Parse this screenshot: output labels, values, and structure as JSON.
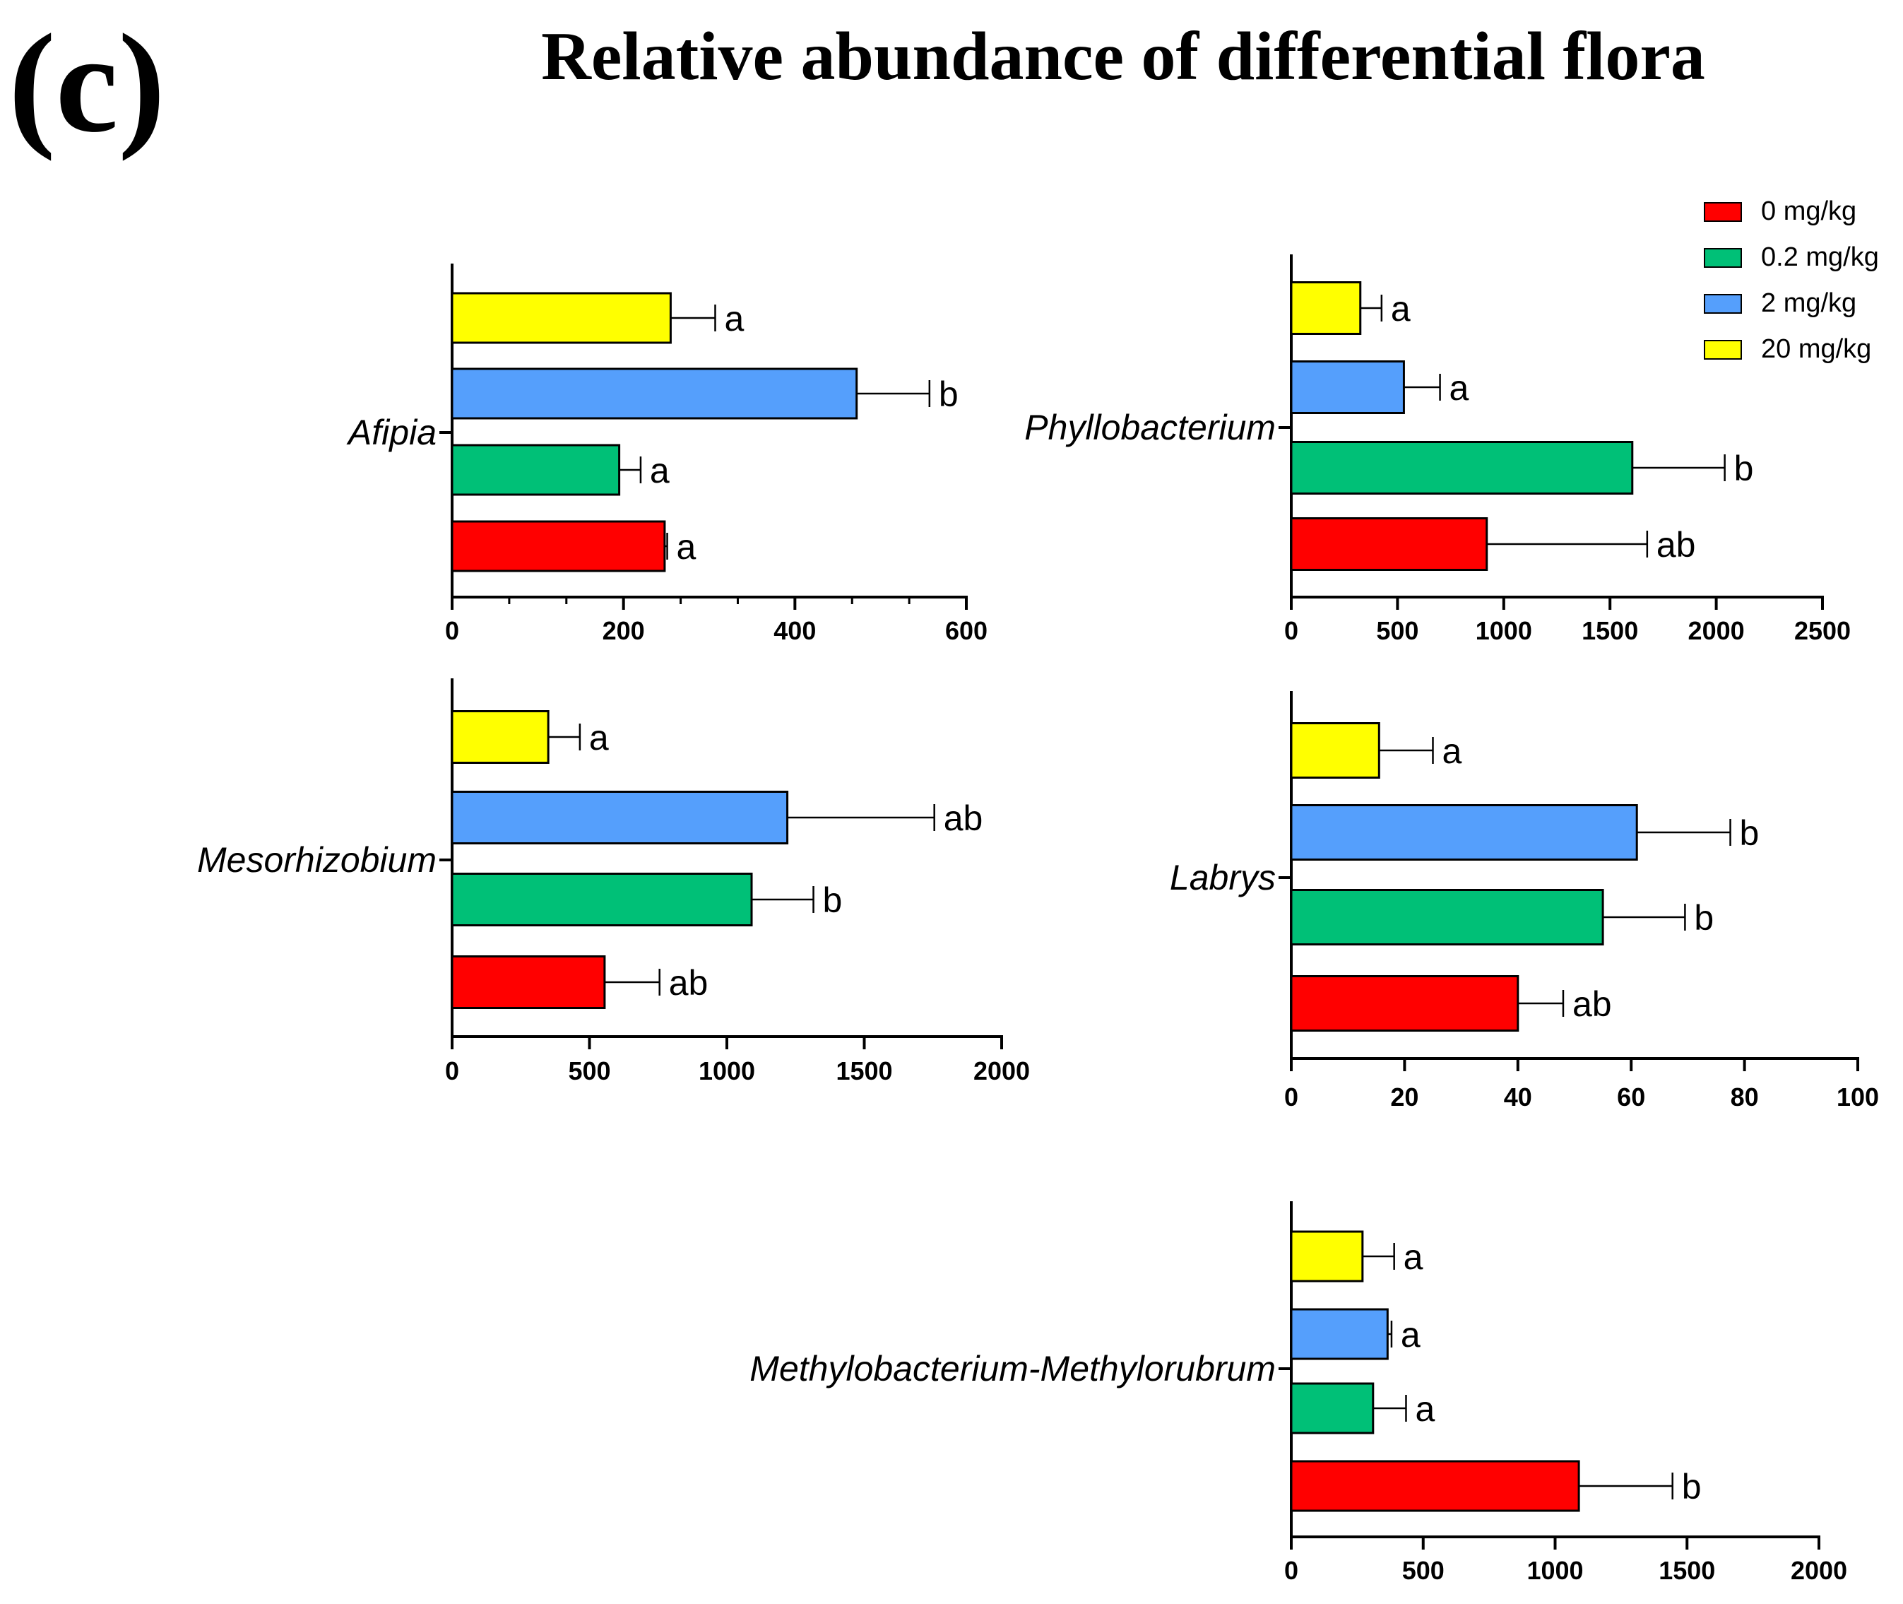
{
  "figure": {
    "panel_label": "(c)",
    "title": "Relative abundance of differential flora"
  },
  "legend": [
    {
      "name": "0 mg/kg",
      "color": "#ff0000"
    },
    {
      "name": "0.2 mg/kg",
      "color": "#00c077"
    },
    {
      "name": "2 mg/kg",
      "color": "#559ffc"
    },
    {
      "name": "20 mg/kg",
      "color": "#ffff00"
    }
  ],
  "chart_data": [
    {
      "type": "bar",
      "orientation": "horizontal",
      "category": "Afipia",
      "series_order": [
        "20 mg/kg",
        "2 mg/kg",
        "0.2 mg/kg",
        "0 mg/kg"
      ],
      "values": [
        255,
        472,
        195,
        248
      ],
      "errors": [
        52,
        85,
        25,
        3
      ],
      "significance": [
        "a",
        "b",
        "a",
        "a"
      ],
      "xlim": [
        0,
        600
      ],
      "ticks": [
        0,
        200,
        400,
        600
      ],
      "minor_step": 66.67
    },
    {
      "type": "bar",
      "orientation": "horizontal",
      "category": "Phyllobacterium",
      "series_order": [
        "20 mg/kg",
        "2 mg/kg",
        "0.2 mg/kg",
        "0 mg/kg"
      ],
      "values": [
        325,
        530,
        1605,
        920
      ],
      "errors": [
        100,
        170,
        435,
        755
      ],
      "significance": [
        "a",
        "a",
        "b",
        "ab"
      ],
      "xlim": [
        0,
        2500
      ],
      "ticks": [
        0,
        500,
        1000,
        1500,
        2000,
        2500
      ],
      "minor_step": 0
    },
    {
      "type": "bar",
      "orientation": "horizontal",
      "category": "Mesorhizobium",
      "series_order": [
        "20 mg/kg",
        "2 mg/kg",
        "0.2 mg/kg",
        "0 mg/kg"
      ],
      "values": [
        350,
        1220,
        1090,
        555
      ],
      "errors": [
        115,
        535,
        225,
        200
      ],
      "significance": [
        "a",
        "ab",
        "b",
        "ab"
      ],
      "xlim": [
        0,
        2000
      ],
      "ticks": [
        0,
        500,
        1000,
        1500,
        2000
      ],
      "minor_step": 0
    },
    {
      "type": "bar",
      "orientation": "horizontal",
      "category": "Labrys",
      "series_order": [
        "20 mg/kg",
        "2 mg/kg",
        "0.2 mg/kg",
        "0 mg/kg"
      ],
      "values": [
        15.5,
        61,
        55,
        40
      ],
      "errors": [
        9.5,
        16.5,
        14.5,
        8
      ],
      "significance": [
        "a",
        "b",
        "b",
        "ab"
      ],
      "xlim": [
        0,
        100
      ],
      "ticks": [
        0,
        20,
        40,
        60,
        80,
        100
      ],
      "minor_step": 0
    },
    {
      "type": "bar",
      "orientation": "horizontal",
      "category": "Methylobacterium-Methylorubrum",
      "series_order": [
        "20 mg/kg",
        "2 mg/kg",
        "0.2 mg/kg",
        "0 mg/kg"
      ],
      "values": [
        270,
        365,
        310,
        1090
      ],
      "errors": [
        120,
        15,
        125,
        355
      ],
      "significance": [
        "a",
        "a",
        "a",
        "b"
      ],
      "xlim": [
        0,
        2000
      ],
      "ticks": [
        0,
        500,
        1000,
        1500,
        2000
      ],
      "minor_step": 0
    }
  ]
}
